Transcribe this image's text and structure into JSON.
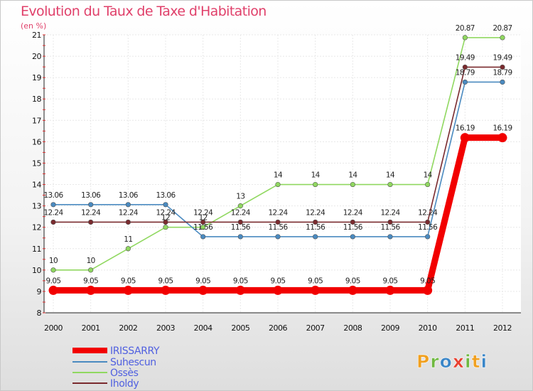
{
  "chart_data": {
    "type": "line",
    "title": "Evolution du Taux de Taxe d'Habitation",
    "subtitle": "(en %)",
    "xlabel": "",
    "ylabel": "",
    "x": [
      "2000",
      "2001",
      "2002",
      "2003",
      "2004",
      "2005",
      "2006",
      "2007",
      "2008",
      "2009",
      "2010",
      "2011",
      "2012"
    ],
    "ylim": [
      8,
      21
    ],
    "yticks": [
      8,
      9,
      10,
      11,
      12,
      13,
      14,
      15,
      16,
      17,
      18,
      19,
      20,
      21
    ],
    "grid": true,
    "legend_position": "bottom-left",
    "series": [
      {
        "name": "IRISSARRY",
        "color": "#f20000",
        "values": [
          9.05,
          9.05,
          9.05,
          9.05,
          9.05,
          9.05,
          9.05,
          9.05,
          9.05,
          9.05,
          9.05,
          16.19,
          16.19
        ],
        "labels": [
          "9.05",
          "9.05",
          "9.05",
          "9.05",
          "9.05",
          "9.05",
          "9.05",
          "9.05",
          "9.05",
          "9.05",
          "9.05",
          "16.19",
          "16.19"
        ]
      },
      {
        "name": "Suhescun",
        "color": "#4a8ac0",
        "values": [
          13.06,
          13.06,
          13.06,
          13.06,
          11.56,
          11.56,
          11.56,
          11.56,
          11.56,
          11.56,
          11.56,
          18.79,
          18.79
        ],
        "labels": [
          "13.06",
          "13.06",
          "13.06",
          "13.06",
          "11.56",
          "11.56",
          "11.56",
          "11.56",
          "11.56",
          "11.56",
          "11.56",
          "18.79",
          "18.79"
        ]
      },
      {
        "name": "Ossès",
        "color": "#90d860",
        "values": [
          10,
          10,
          11,
          12,
          12,
          13,
          14,
          14,
          14,
          14,
          14,
          20.87,
          20.87
        ],
        "labels": [
          "10",
          "10",
          "11",
          "12",
          "12",
          "13",
          "14",
          "14",
          "14",
          "14",
          "14",
          "20.87",
          "20.87"
        ]
      },
      {
        "name": "Iholdy",
        "color": "#7a2a2e",
        "values": [
          12.24,
          12.24,
          12.24,
          12.24,
          12.24,
          12.24,
          12.24,
          12.24,
          12.24,
          12.24,
          12.24,
          19.49,
          19.49
        ],
        "labels": [
          "12.24",
          "12.24",
          "12.24",
          "12.24",
          "12.24",
          "12.24",
          "12.24",
          "12.24",
          "12.24",
          "12.24",
          "12.24",
          "19.49",
          "19.49"
        ]
      }
    ]
  },
  "brand": {
    "letters": [
      "P",
      "r",
      "o",
      "x",
      "i",
      "t",
      "i"
    ],
    "colors": [
      "#f0a020",
      "#6fb840",
      "#3a86c8",
      "#e84030",
      "#6fb840",
      "#f0a020",
      "#3a86c8"
    ]
  },
  "legend_text_color": "#5060e0"
}
